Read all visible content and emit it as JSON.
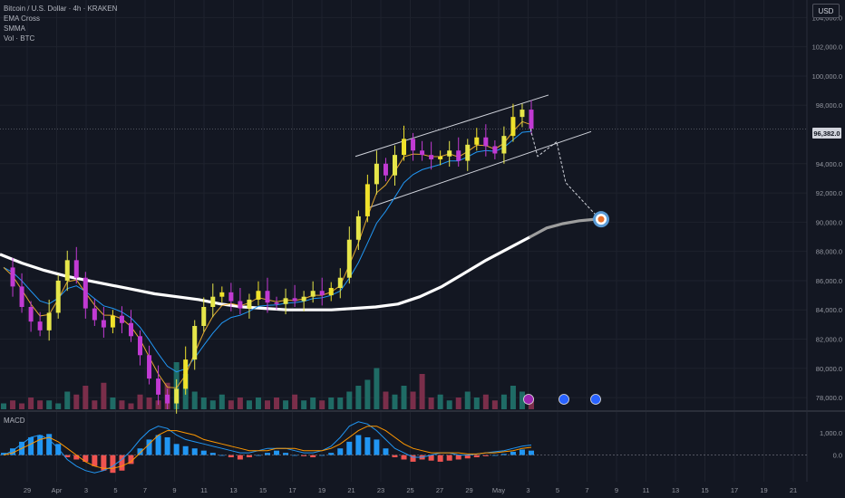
{
  "legend": {
    "symbol": "Bitcoin / U.S. Dollar · 4h · KRAKEN",
    "indicator1": "EMA Cross",
    "indicator2": "SMMA",
    "indicator3": "Vol · BTC"
  },
  "currency_button": "USD",
  "last_price_tag": "96,382.0",
  "macd_label": "MACD",
  "chart_data": [
    {
      "type": "candlestick",
      "title": "Bitcoin / U.S. Dollar · 4h · KRAKEN",
      "y_ticks": [
        "104,000.0",
        "102,000.0",
        "100,000.0",
        "98,000.0",
        "94,000.0",
        "92,000.0",
        "90,000.0",
        "88,000.0",
        "86,000.0",
        "84,000.0",
        "82,000.0",
        "80,000.0",
        "78,000.0"
      ],
      "y_tick_values": [
        104000,
        102000,
        100000,
        98000,
        94000,
        92000,
        90000,
        88000,
        86000,
        84000,
        82000,
        80000,
        78000
      ],
      "ylim": [
        77200,
        105200
      ],
      "x_ticks": [
        "29",
        "Apr",
        "3",
        "5",
        "7",
        "9",
        "11",
        "13",
        "15",
        "17",
        "19",
        "21",
        "23",
        "25",
        "27",
        "29",
        "May",
        "3",
        "5",
        "7",
        "9",
        "11",
        "13",
        "15",
        "17",
        "19",
        "21"
      ],
      "last_price": 96382,
      "price_path": [
        86900,
        85600,
        84200,
        83200,
        82600,
        83800,
        86000,
        87400,
        86200,
        84100,
        83300,
        82800,
        83600,
        83100,
        82200,
        80900,
        79300,
        78200,
        77600,
        78600,
        80600,
        82900,
        84200,
        84900,
        85200,
        84600,
        84100,
        84700,
        85300,
        84500,
        84400,
        84800,
        84600,
        84900,
        85300,
        85000,
        85500,
        86200,
        88800,
        90400,
        92600,
        94000,
        93200,
        94600,
        95700,
        94900,
        94600,
        94300,
        94500,
        94900,
        94200,
        95300,
        95800,
        95200,
        94700,
        95900,
        97200,
        97700,
        96400
      ],
      "sma_200": [
        87800,
        87200,
        86700,
        86300,
        86000,
        85700,
        85400,
        85100,
        84900,
        84700,
        84400,
        84200,
        84100,
        84000,
        84000,
        84000,
        84100,
        84200,
        84400,
        84900,
        85600,
        86500,
        87400,
        88200,
        89000
      ],
      "channel_upper": [
        [
          23.5,
          94500
        ],
        [
          29.5,
          98700
        ]
      ],
      "channel_lower": [
        [
          25.0,
          91000
        ],
        [
          33.5,
          96200
        ]
      ],
      "projection_dashed": [
        96400,
        94500,
        95500,
        92700,
        90300
      ],
      "projection_curve": [
        89000,
        89600,
        89900,
        90100,
        90200
      ],
      "target_price": 90200,
      "volume": [
        2,
        3,
        2,
        4,
        3,
        3,
        2,
        6,
        5,
        8,
        3,
        9,
        4,
        3,
        2,
        5,
        4,
        3,
        9,
        16,
        12,
        6,
        4,
        3,
        5,
        3,
        4,
        3,
        4,
        3,
        4,
        3,
        5,
        3,
        4,
        3,
        4,
        4,
        6,
        8,
        10,
        14,
        6,
        5,
        8,
        6,
        12,
        4,
        5,
        3,
        4,
        6,
        4,
        5,
        3,
        5,
        8,
        6,
        4
      ],
      "series": [
        {
          "name": "EMA Cross"
        },
        {
          "name": "SMMA"
        }
      ]
    },
    {
      "type": "bar",
      "title": "MACD",
      "y_ticks": [
        "1,000.0",
        "0.0"
      ],
      "y_tick_values": [
        1000,
        0
      ],
      "ylim": [
        -1200,
        1900
      ],
      "histogram": [
        100,
        300,
        600,
        800,
        900,
        950,
        500,
        -100,
        -200,
        -300,
        -500,
        -700,
        -800,
        -700,
        -400,
        300,
        700,
        900,
        800,
        500,
        400,
        300,
        200,
        100,
        0,
        -100,
        -200,
        -100,
        0,
        100,
        200,
        100,
        0,
        -50,
        -100,
        0,
        100,
        300,
        600,
        900,
        800,
        700,
        300,
        -100,
        -200,
        -300,
        -200,
        -250,
        -300,
        -250,
        -200,
        -150,
        -100,
        -50,
        0,
        50,
        150,
        250,
        200
      ],
      "macd_line": [
        0,
        200,
        500,
        800,
        900,
        700,
        300,
        -200,
        -500,
        -700,
        -800,
        -700,
        -500,
        -200,
        200,
        700,
        1100,
        1300,
        1200,
        900,
        700,
        600,
        500,
        400,
        300,
        200,
        100,
        100,
        200,
        300,
        300,
        300,
        200,
        100,
        100,
        200,
        400,
        800,
        1300,
        1500,
        1400,
        1100,
        700,
        300,
        100,
        -100,
        -100,
        0,
        100,
        100,
        0,
        0,
        50,
        100,
        150,
        200,
        300,
        400,
        450
      ],
      "signal_line": [
        0,
        100,
        300,
        500,
        700,
        800,
        600,
        300,
        0,
        -300,
        -500,
        -600,
        -600,
        -500,
        -300,
        100,
        500,
        900,
        1100,
        1100,
        1000,
        900,
        700,
        600,
        500,
        400,
        300,
        200,
        200,
        200,
        300,
        300,
        300,
        200,
        200,
        200,
        300,
        500,
        800,
        1100,
        1300,
        1300,
        1100,
        800,
        500,
        300,
        200,
        100,
        100,
        100,
        100,
        50,
        50,
        100,
        100,
        150,
        200,
        300,
        350
      ]
    }
  ]
}
